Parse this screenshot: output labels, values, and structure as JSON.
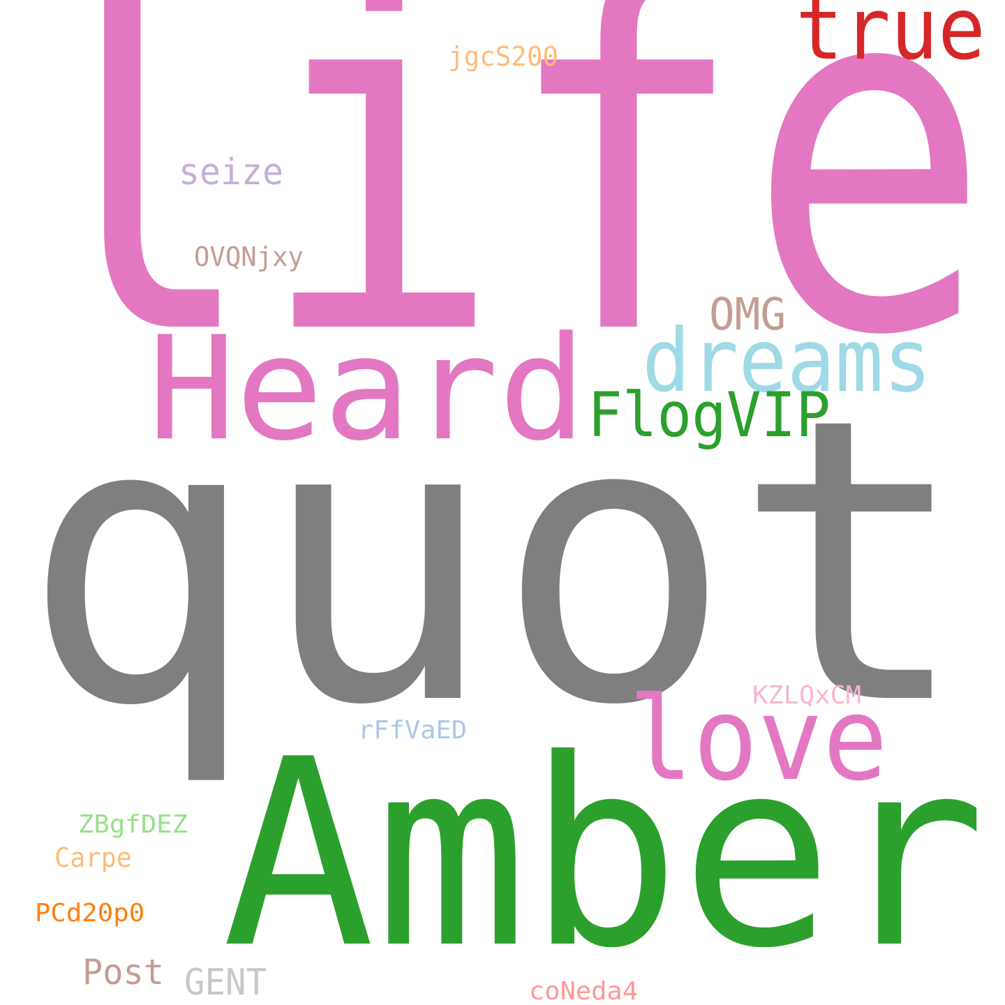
{
  "words": [
    {
      "id": "life",
      "text": "life",
      "color": "#e377c2"
    },
    {
      "id": "quot",
      "text": "quot",
      "color": "#7f7f7f"
    },
    {
      "id": "amber",
      "text": "Amber",
      "color": "#2ca02c"
    },
    {
      "id": "heard",
      "text": "Heard",
      "color": "#e377c2"
    },
    {
      "id": "dreams",
      "text": "dreams",
      "color": "#9edae5"
    },
    {
      "id": "true",
      "text": "true",
      "color": "#d62728"
    },
    {
      "id": "flogvip",
      "text": "FlogVIP",
      "color": "#2ca02c"
    },
    {
      "id": "love",
      "text": "love",
      "color": "#e377c2"
    },
    {
      "id": "omg",
      "text": "OMG",
      "color": "#c49c94"
    },
    {
      "id": "seize",
      "text": "seize",
      "color": "#c5b0d5"
    },
    {
      "id": "ovqnjxy",
      "text": "OVQNjxy",
      "color": "#c49c94"
    },
    {
      "id": "jgcs200",
      "text": "jgcS200",
      "color": "#ffbb78"
    },
    {
      "id": "kzlqxcm",
      "text": "KZLQxCM",
      "color": "#f7b6d2"
    },
    {
      "id": "rffvaed",
      "text": "rFfVaED",
      "color": "#aec7e8"
    },
    {
      "id": "zbgfdez",
      "text": "ZBgfDEZ",
      "color": "#98df8a"
    },
    {
      "id": "carpe",
      "text": "Carpe",
      "color": "#ffbb78"
    },
    {
      "id": "pcd20p0",
      "text": "PCd20p0",
      "color": "#ff7f0e"
    },
    {
      "id": "post",
      "text": "Post",
      "color": "#c49c94"
    },
    {
      "id": "gent",
      "text": "GENT",
      "color": "#c7c7c7"
    },
    {
      "id": "coneda4",
      "text": "coNeda4",
      "color": "#ff9896"
    }
  ]
}
